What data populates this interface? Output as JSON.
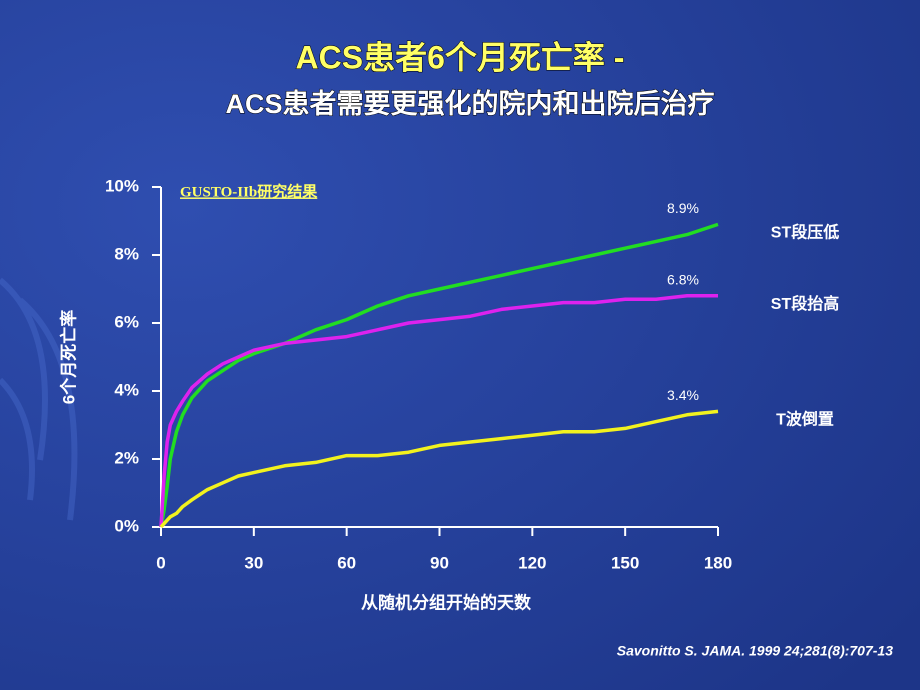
{
  "chart_data": {
    "type": "line",
    "title": "ACS患者6个月死亡率 -",
    "subtitle": "ACS患者需要更强化的院内和出院后治疗",
    "annotation": "GUSTO-IIb研究结果",
    "x_label": "从随机分组开始的天数",
    "y_label": "6个月死亡率",
    "source": "Savonitto S. JAMA. 1999 24;281(8):707-13",
    "xlim": [
      0,
      180
    ],
    "xticks": [
      0,
      30,
      60,
      90,
      120,
      150,
      180
    ],
    "ylim": [
      0,
      10
    ],
    "yticks": [
      {
        "value": 0,
        "label": "0%"
      },
      {
        "value": 2,
        "label": "2%"
      },
      {
        "value": 4,
        "label": "4%"
      },
      {
        "value": 6,
        "label": "6%"
      },
      {
        "value": 8,
        "label": "8%"
      },
      {
        "value": 10,
        "label": "10%"
      }
    ],
    "x": [
      0,
      1,
      2,
      3,
      5,
      7,
      10,
      15,
      20,
      25,
      30,
      40,
      50,
      60,
      70,
      80,
      90,
      100,
      110,
      120,
      130,
      140,
      150,
      160,
      170,
      180
    ],
    "series": [
      {
        "name": "ST段压低",
        "color": "#22dd22",
        "values": [
          0,
          0.5,
          1.2,
          2,
          2.8,
          3.3,
          3.8,
          4.3,
          4.6,
          4.9,
          5.1,
          5.4,
          5.8,
          6.1,
          6.5,
          6.8,
          7.0,
          7.2,
          7.4,
          7.6,
          7.8,
          8.0,
          8.2,
          8.4,
          8.6,
          8.9
        ],
        "value_labels": [
          null,
          null,
          null,
          null,
          null,
          null,
          null,
          null,
          null,
          null,
          null,
          null,
          null,
          null,
          null,
          null,
          null,
          null,
          null,
          null,
          null,
          null,
          null,
          null,
          null,
          "8.9%"
        ]
      },
      {
        "name": "ST段抬高",
        "color": "#dd22ee",
        "values": [
          0,
          1.5,
          2.5,
          3.0,
          3.4,
          3.7,
          4.1,
          4.5,
          4.8,
          5.0,
          5.2,
          5.4,
          5.5,
          5.6,
          5.8,
          6.0,
          6.1,
          6.2,
          6.4,
          6.5,
          6.6,
          6.6,
          6.7,
          6.7,
          6.8,
          6.8
        ],
        "value_labels": [
          null,
          null,
          null,
          null,
          null,
          null,
          null,
          null,
          null,
          null,
          null,
          null,
          null,
          null,
          null,
          null,
          null,
          null,
          null,
          null,
          null,
          null,
          null,
          null,
          null,
          "6.8%"
        ]
      },
      {
        "name": "T波倒置",
        "color": "#f2f21e",
        "values": [
          0,
          0.1,
          0.2,
          0.3,
          0.4,
          0.6,
          0.8,
          1.1,
          1.3,
          1.5,
          1.6,
          1.8,
          1.9,
          2.1,
          2.1,
          2.2,
          2.4,
          2.5,
          2.6,
          2.7,
          2.8,
          2.8,
          2.9,
          3.1,
          3.3,
          3.4
        ],
        "value_labels": [
          null,
          null,
          null,
          null,
          null,
          null,
          null,
          null,
          null,
          null,
          null,
          null,
          null,
          null,
          null,
          null,
          null,
          null,
          null,
          null,
          null,
          null,
          null,
          null,
          null,
          "3.4%"
        ]
      }
    ]
  }
}
